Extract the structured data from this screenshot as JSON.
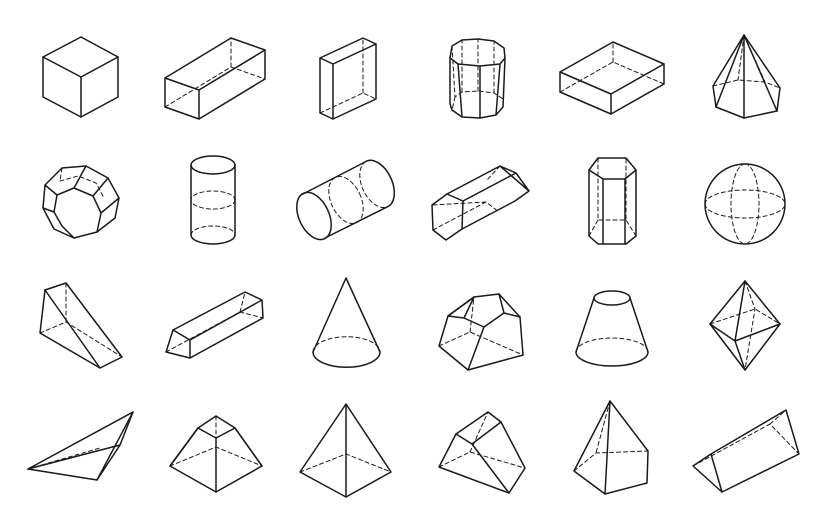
{
  "canvas": {
    "background": "#ffffff",
    "stroke_color": "#1a1a1a"
  },
  "shapes": [
    {
      "name": "cube-icon"
    },
    {
      "name": "rectangular-prism-long-icon"
    },
    {
      "name": "square-slab-icon"
    },
    {
      "name": "octagonal-prism-upright-icon"
    },
    {
      "name": "flat-rectangular-box-icon"
    },
    {
      "name": "hexagonal-pyramid-icon"
    },
    {
      "name": "octagonal-prism-tilted-icon"
    },
    {
      "name": "cylinder-upright-icon"
    },
    {
      "name": "cylinder-lying-icon"
    },
    {
      "name": "hexagonal-prism-lying-icon"
    },
    {
      "name": "hexagonal-prism-upright-icon"
    },
    {
      "name": "sphere-icon"
    },
    {
      "name": "wedge-icon"
    },
    {
      "name": "trapezoidal-prism-icon"
    },
    {
      "name": "cone-icon"
    },
    {
      "name": "pentagonal-frustum-icon"
    },
    {
      "name": "cone-frustum-icon"
    },
    {
      "name": "octahedron-icon"
    },
    {
      "name": "flat-triangular-pyramid-icon"
    },
    {
      "name": "square-frustum-icon"
    },
    {
      "name": "triangular-pyramid-icon"
    },
    {
      "name": "trapezoid-prism-angled-icon"
    },
    {
      "name": "pentagonal-pyramid-icon"
    },
    {
      "name": "triangular-prism-icon"
    }
  ]
}
